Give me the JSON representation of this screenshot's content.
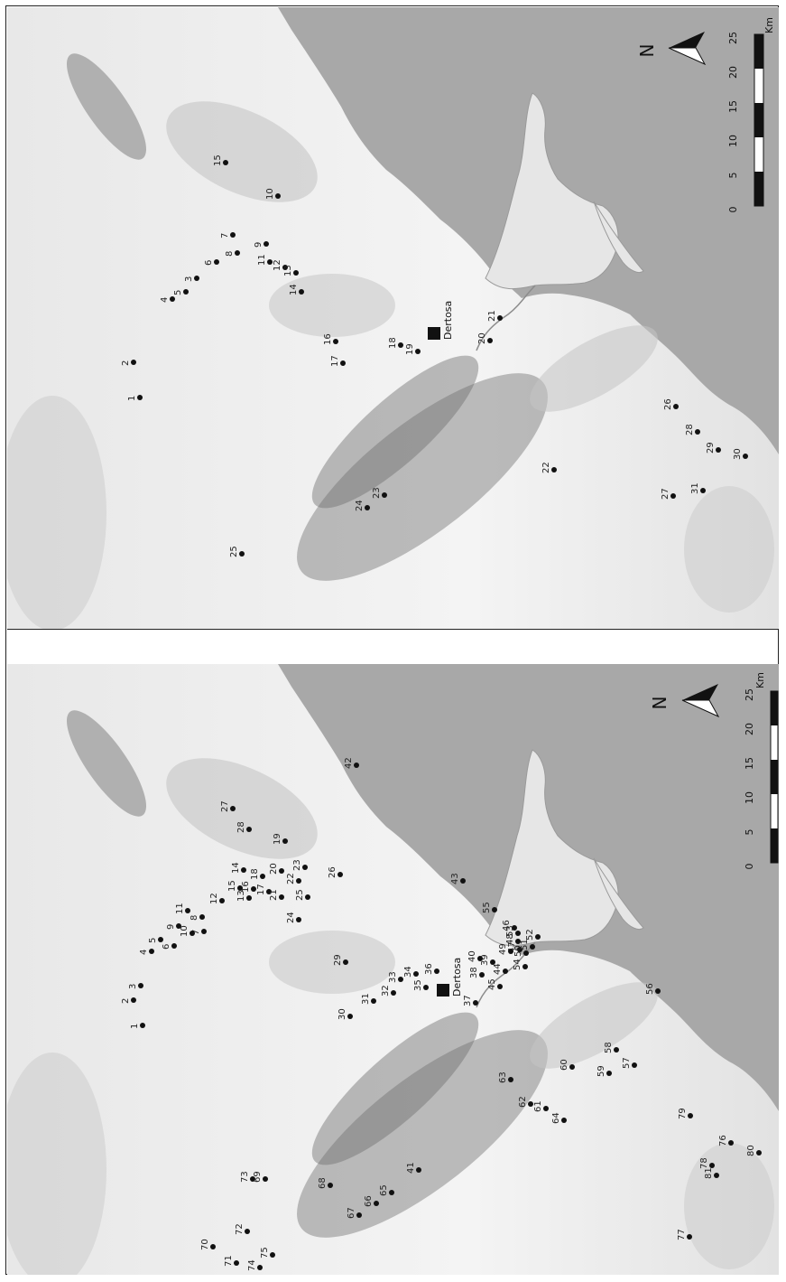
{
  "colors": {
    "sea": "#a8a8a8",
    "land_light": "#f0f0f0",
    "land_mid": "#d4d4d4",
    "relief_dark": "#7f7f7f",
    "site": "#111111"
  },
  "town_label": "Dertosa",
  "north_label": "N",
  "scale": {
    "ticks": [
      "0",
      "5",
      "10",
      "15",
      "20",
      "25"
    ],
    "unit": "Km"
  },
  "maps": [
    {
      "id": "top",
      "sites": [
        {
          "label": "1"
        },
        {
          "label": "2"
        },
        {
          "label": "3"
        },
        {
          "label": "4"
        },
        {
          "label": "5"
        },
        {
          "label": "6"
        },
        {
          "label": "7"
        },
        {
          "label": "8"
        },
        {
          "label": "9"
        },
        {
          "label": "10"
        },
        {
          "label": "11"
        },
        {
          "label": "12"
        },
        {
          "label": "13"
        },
        {
          "label": "14"
        },
        {
          "label": "15"
        },
        {
          "label": "16"
        },
        {
          "label": "17"
        },
        {
          "label": "18"
        },
        {
          "label": "19"
        },
        {
          "label": "20"
        },
        {
          "label": "21"
        },
        {
          "label": "22"
        },
        {
          "label": "23"
        },
        {
          "label": "24"
        },
        {
          "label": "25"
        },
        {
          "label": "26"
        },
        {
          "label": "27"
        },
        {
          "label": "28"
        },
        {
          "label": "29"
        },
        {
          "label": "30"
        },
        {
          "label": "31"
        }
      ]
    },
    {
      "id": "bottom",
      "sites": [
        {
          "label": "1"
        },
        {
          "label": "2"
        },
        {
          "label": "3"
        },
        {
          "label": "4"
        },
        {
          "label": "5"
        },
        {
          "label": "6"
        },
        {
          "label": "7"
        },
        {
          "label": "8"
        },
        {
          "label": "9"
        },
        {
          "label": "10"
        },
        {
          "label": "11"
        },
        {
          "label": "12"
        },
        {
          "label": "13"
        },
        {
          "label": "14"
        },
        {
          "label": "15"
        },
        {
          "label": "16"
        },
        {
          "label": "17"
        },
        {
          "label": "18"
        },
        {
          "label": "19"
        },
        {
          "label": "20"
        },
        {
          "label": "21"
        },
        {
          "label": "22"
        },
        {
          "label": "23"
        },
        {
          "label": "24"
        },
        {
          "label": "25"
        },
        {
          "label": "26"
        },
        {
          "label": "27"
        },
        {
          "label": "28"
        },
        {
          "label": "29"
        },
        {
          "label": "30"
        },
        {
          "label": "31"
        },
        {
          "label": "32"
        },
        {
          "label": "33"
        },
        {
          "label": "34"
        },
        {
          "label": "35"
        },
        {
          "label": "36"
        },
        {
          "label": "37"
        },
        {
          "label": "38"
        },
        {
          "label": "39"
        },
        {
          "label": "40"
        },
        {
          "label": "41"
        },
        {
          "label": "42"
        },
        {
          "label": "43"
        },
        {
          "label": "44"
        },
        {
          "label": "45"
        },
        {
          "label": "46"
        },
        {
          "label": "47"
        },
        {
          "label": "48"
        },
        {
          "label": "49"
        },
        {
          "label": "50"
        },
        {
          "label": "51"
        },
        {
          "label": "52"
        },
        {
          "label": "53"
        },
        {
          "label": "54"
        },
        {
          "label": "55"
        },
        {
          "label": "56"
        },
        {
          "label": "57"
        },
        {
          "label": "58"
        },
        {
          "label": "59"
        },
        {
          "label": "60"
        },
        {
          "label": "61"
        },
        {
          "label": "62"
        },
        {
          "label": "63"
        },
        {
          "label": "64"
        },
        {
          "label": "65"
        },
        {
          "label": "66"
        },
        {
          "label": "67"
        },
        {
          "label": "68"
        },
        {
          "label": "69"
        },
        {
          "label": "70"
        },
        {
          "label": "71"
        },
        {
          "label": "72"
        },
        {
          "label": "73"
        },
        {
          "label": "74"
        },
        {
          "label": "75"
        },
        {
          "label": "76"
        },
        {
          "label": "77"
        },
        {
          "label": "78"
        },
        {
          "label": "79"
        },
        {
          "label": "80"
        },
        {
          "label": "81"
        }
      ]
    }
  ]
}
